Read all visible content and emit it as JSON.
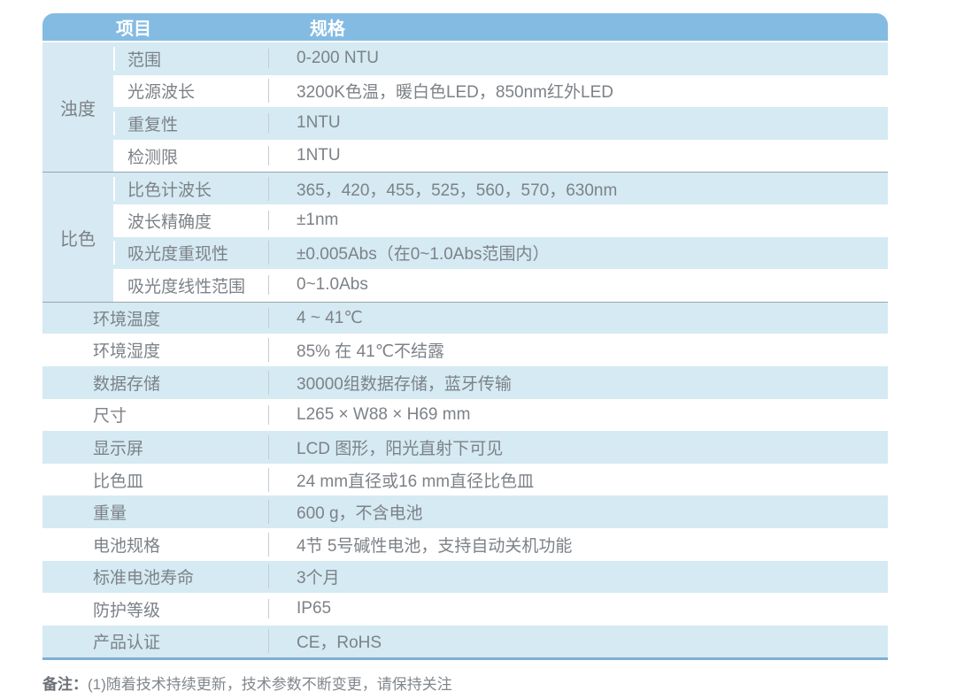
{
  "header": {
    "item_label": "项目",
    "spec_label": "规格"
  },
  "sections": {
    "turbidity": {
      "group_label": "浊度",
      "rows": [
        {
          "label": "范围",
          "value": "0-200 NTU"
        },
        {
          "label": "光源波长",
          "value": "3200K色温，暖白色LED，850nm红外LED"
        },
        {
          "label": "重复性",
          "value": "1NTU"
        },
        {
          "label": "检测限",
          "value": "1NTU"
        }
      ]
    },
    "colorimetry": {
      "group_label": "比色",
      "rows": [
        {
          "label": "比色计波长",
          "value": "365，420，455，525，560，570，630nm"
        },
        {
          "label": "波长精确度",
          "value": "±1nm"
        },
        {
          "label": "吸光度重现性",
          "value": "±0.005Abs（在0~1.0Abs范围内）"
        },
        {
          "label": "吸光度线性范围",
          "value": "0~1.0Abs"
        }
      ]
    },
    "general": {
      "rows": [
        {
          "label": "环境温度",
          "value": "4 ~ 41℃"
        },
        {
          "label": "环境湿度",
          "value": "85% 在 41℃不结露"
        },
        {
          "label": "数据存储",
          "value": "30000组数据存储，蓝牙传输"
        },
        {
          "label": "尺寸",
          "value": "L265 × W88 × H69 mm"
        },
        {
          "label": "显示屏",
          "value": "LCD 图形，阳光直射下可见"
        },
        {
          "label": "比色皿",
          "value": "24 mm直径或16 mm直径比色皿"
        },
        {
          "label": "重量",
          "value": "600 g，不含电池"
        },
        {
          "label": "电池规格",
          "value": "4节 5号碱性电池，支持自动关机功能"
        },
        {
          "label": "标准电池寿命",
          "value": "3个月"
        },
        {
          "label": "防护等级",
          "value": "IP65"
        },
        {
          "label": "产品认证",
          "value": "CE，RoHS"
        }
      ]
    }
  },
  "note": {
    "label": "备注：",
    "text": "(1)随着技术持续更新，技术参数不断变更，请保持关注"
  },
  "colors": {
    "header_bg": "#84BBE2",
    "row_alt_bg": "#D5EAF3",
    "group_col_bg": "#D7E9F2",
    "section_divider": "#9AA4AC",
    "cell_divider": "#C4CCD2",
    "bottom_border": "#7FAFD4",
    "text": "#7D8287",
    "header_text": "#FFFFFF"
  }
}
